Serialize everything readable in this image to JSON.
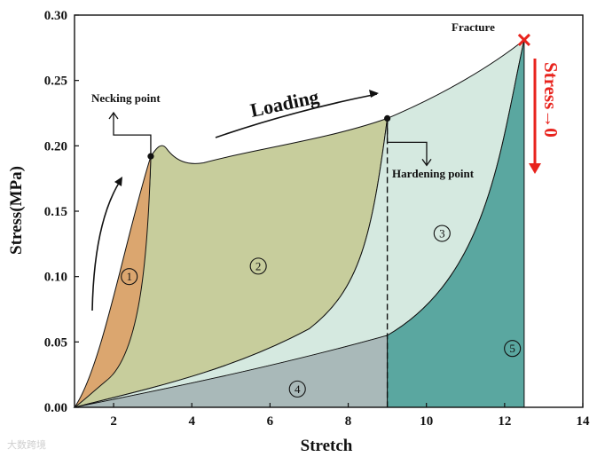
{
  "chart_data": {
    "type": "area",
    "xlabel": "Stretch",
    "ylabel": "Stress(MPa)",
    "xlim": [
      1,
      14
    ],
    "ylim": [
      0,
      0.3
    ],
    "x_ticks": [
      "2",
      "4",
      "6",
      "8",
      "10",
      "12",
      "14"
    ],
    "y_ticks": [
      "0.00",
      "0.05",
      "0.10",
      "0.15",
      "0.20",
      "0.25",
      "0.30"
    ],
    "loading_curve": {
      "x": [
        1,
        1.5,
        2.0,
        2.5,
        2.95,
        3.2,
        3.5,
        4.0,
        5.0,
        6.0,
        7.0,
        8.0,
        9.0,
        10.0,
        11.0,
        12.0,
        12.5
      ],
      "y": [
        0,
        0.035,
        0.09,
        0.15,
        0.192,
        0.199,
        0.192,
        0.187,
        0.195,
        0.2,
        0.204,
        0.211,
        0.221,
        0.236,
        0.252,
        0.27,
        0.281
      ]
    },
    "regions": [
      {
        "label": "1",
        "color": "#dba66f",
        "label_pos": [
          2.4,
          0.1
        ]
      },
      {
        "label": "2",
        "color": "#c7cd9c",
        "label_pos": [
          5.7,
          0.108
        ]
      },
      {
        "label": "3",
        "color": "#d5e9e0",
        "label_pos": [
          10.4,
          0.133
        ]
      },
      {
        "label": "4",
        "color": "#a9b9b9",
        "label_pos": [
          6.7,
          0.014
        ]
      },
      {
        "label": "5",
        "color": "#5aa7a0",
        "label_pos": [
          12.2,
          0.045
        ]
      }
    ],
    "points": {
      "necking": [
        2.95,
        0.192
      ],
      "hardening": [
        9.0,
        0.221
      ],
      "fracture": [
        12.5,
        0.281
      ]
    },
    "annotations": {
      "necking": "Necking point",
      "hardening": "Hardening point",
      "fracture": "Fracture",
      "loading": "Loading",
      "stress_zero": "Stress→0"
    },
    "colors": {
      "accent_red": "#e8231d"
    }
  },
  "watermark": "大数跨境"
}
